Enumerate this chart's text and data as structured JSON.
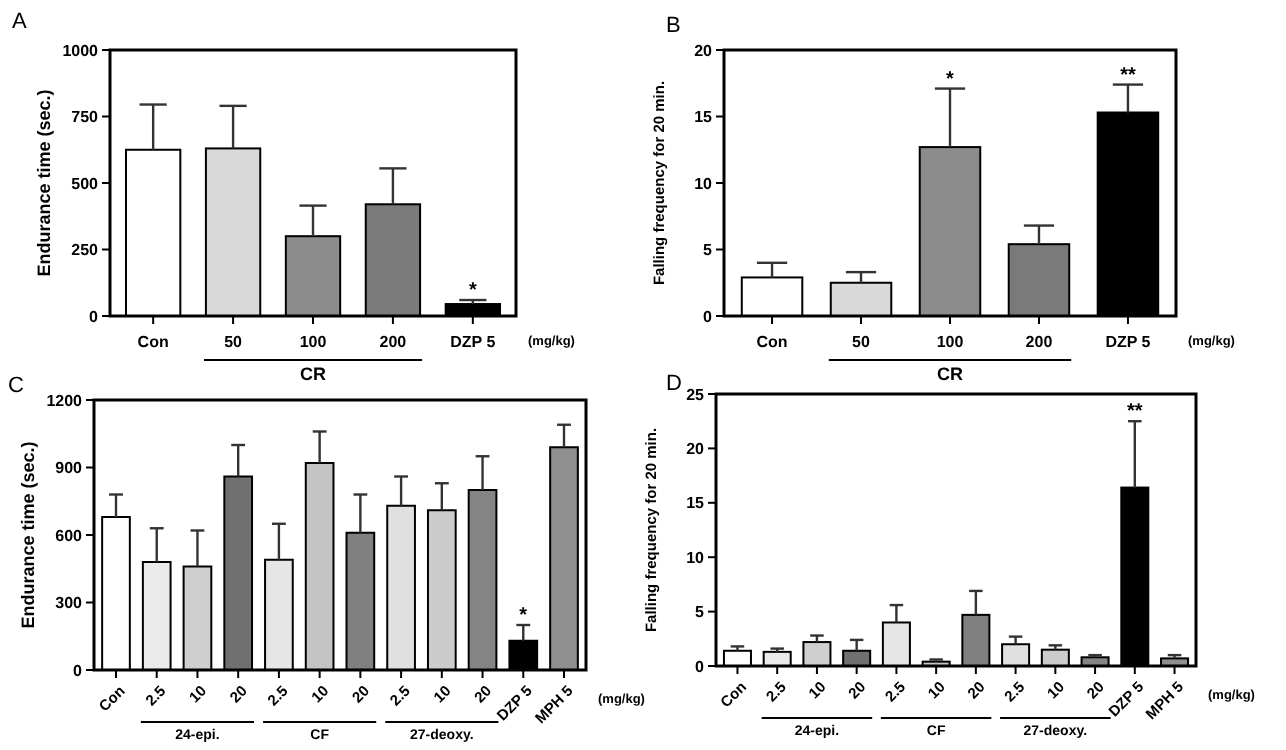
{
  "chart_data": [
    {
      "type": "bar",
      "ylabel": "Endurance time (sec.)",
      "categories": [
        "Con",
        "50",
        "100",
        "200",
        "DZP 5"
      ],
      "values": [
        625,
        630,
        300,
        420,
        45
      ],
      "errors": [
        [
          625,
          795
        ],
        [
          630,
          790
        ],
        [
          300,
          415
        ],
        [
          420,
          555
        ],
        [
          45,
          60
        ]
      ],
      "colors": [
        "#ffffff",
        "#d9d9d9",
        "#8c8c8c",
        "#7a7a7a",
        "#000000"
      ],
      "ylim": [
        0,
        1000
      ],
      "yticks": [
        0,
        250,
        500,
        750,
        1000
      ],
      "annotations": [
        "A",
        "(mg/kg)",
        "CR",
        {
          "text": "*",
          "x": "DZP 5",
          "y": 60
        }
      ]
    },
    {
      "type": "bar",
      "ylabel": "Falling frequency for 20 min.",
      "categories": [
        "Con",
        "50",
        "100",
        "200",
        "DZP 5"
      ],
      "values": [
        2.9,
        2.5,
        12.7,
        5.4,
        15.3
      ],
      "errors": [
        [
          2.9,
          4
        ],
        [
          2.5,
          3.3
        ],
        [
          12.7,
          17.1
        ],
        [
          5.4,
          6.8
        ],
        [
          15.3,
          17.4
        ]
      ],
      "colors": [
        "#ffffff",
        "#d9d9d9",
        "#8c8c8c",
        "#7a7a7a",
        "#000000"
      ],
      "ylim": [
        0,
        20
      ],
      "yticks": [
        0,
        5,
        10,
        15,
        20
      ],
      "annotations": [
        "B",
        "(mg/kg)",
        "CR",
        {
          "text": "*",
          "x": "100",
          "y": 17.1
        },
        {
          "text": "**",
          "x": "DZP 5",
          "y": 17.4
        }
      ]
    },
    {
      "type": "bar",
      "ylabel": "Endurance time  (sec.)",
      "categories": [
        "Con",
        "2.5",
        "10",
        "20",
        "2.5",
        "10",
        "20",
        "2.5",
        "10",
        "20",
        "DZP 5",
        "MPH 5"
      ],
      "values": [
        680,
        480,
        460,
        860,
        490,
        920,
        610,
        730,
        710,
        800,
        130,
        990
      ],
      "errors": [
        [
          680,
          780
        ],
        [
          480,
          630
        ],
        [
          460,
          620
        ],
        [
          860,
          1000
        ],
        [
          490,
          650
        ],
        [
          920,
          1060
        ],
        [
          610,
          780
        ],
        [
          730,
          860
        ],
        [
          710,
          830
        ],
        [
          800,
          950
        ],
        [
          130,
          200
        ],
        [
          990,
          1090
        ]
      ],
      "colors": [
        "#ffffff",
        "#ebebeb",
        "#cfcfcf",
        "#707070",
        "#e6e6e6",
        "#c4c4c4",
        "#808080",
        "#e0e0e0",
        "#cccccc",
        "#858585",
        "#000000",
        "#8f8f8f"
      ],
      "ylim": [
        0,
        1200
      ],
      "yticks": [
        0,
        300,
        600,
        900,
        1200
      ],
      "annotations": [
        "C",
        "(mg/kg)",
        "24-epi.",
        "CF",
        "27-deoxy.",
        {
          "text": "*",
          "x": "DZP 5",
          "y": 200
        }
      ]
    },
    {
      "type": "bar",
      "ylabel": "Falling frequency for 20 min.",
      "categories": [
        "Con",
        "2.5",
        "10",
        "20",
        "2.5",
        "10",
        "20",
        "2.5",
        "10",
        "20",
        "DZP 5",
        "MPH 5"
      ],
      "values": [
        1.4,
        1.3,
        2.2,
        1.4,
        4.0,
        0.4,
        4.7,
        2.0,
        1.5,
        0.8,
        16.4,
        0.7
      ],
      "errors": [
        [
          1.4,
          1.8
        ],
        [
          1.3,
          1.6
        ],
        [
          2.2,
          2.8
        ],
        [
          1.4,
          2.4
        ],
        [
          4.0,
          5.6
        ],
        [
          0.4,
          0.6
        ],
        [
          4.7,
          6.9
        ],
        [
          2.0,
          2.7
        ],
        [
          1.5,
          1.9
        ],
        [
          0.8,
          1.0
        ],
        [
          16.4,
          22.5
        ],
        [
          0.7,
          1.0
        ]
      ],
      "colors": [
        "#ffffff",
        "#ebebeb",
        "#cfcfcf",
        "#707070",
        "#e6e6e6",
        "#c4c4c4",
        "#808080",
        "#e0e0e0",
        "#cccccc",
        "#858585",
        "#000000",
        "#8f8f8f"
      ],
      "ylim": [
        0,
        25
      ],
      "yticks": [
        0,
        5,
        10,
        15,
        20,
        25
      ],
      "annotations": [
        "D",
        "(mg/kg)",
        "24-epi.",
        "CF",
        "27-deoxy.",
        {
          "text": "**",
          "x": "DZP 5",
          "y": 22.5
        }
      ]
    }
  ]
}
